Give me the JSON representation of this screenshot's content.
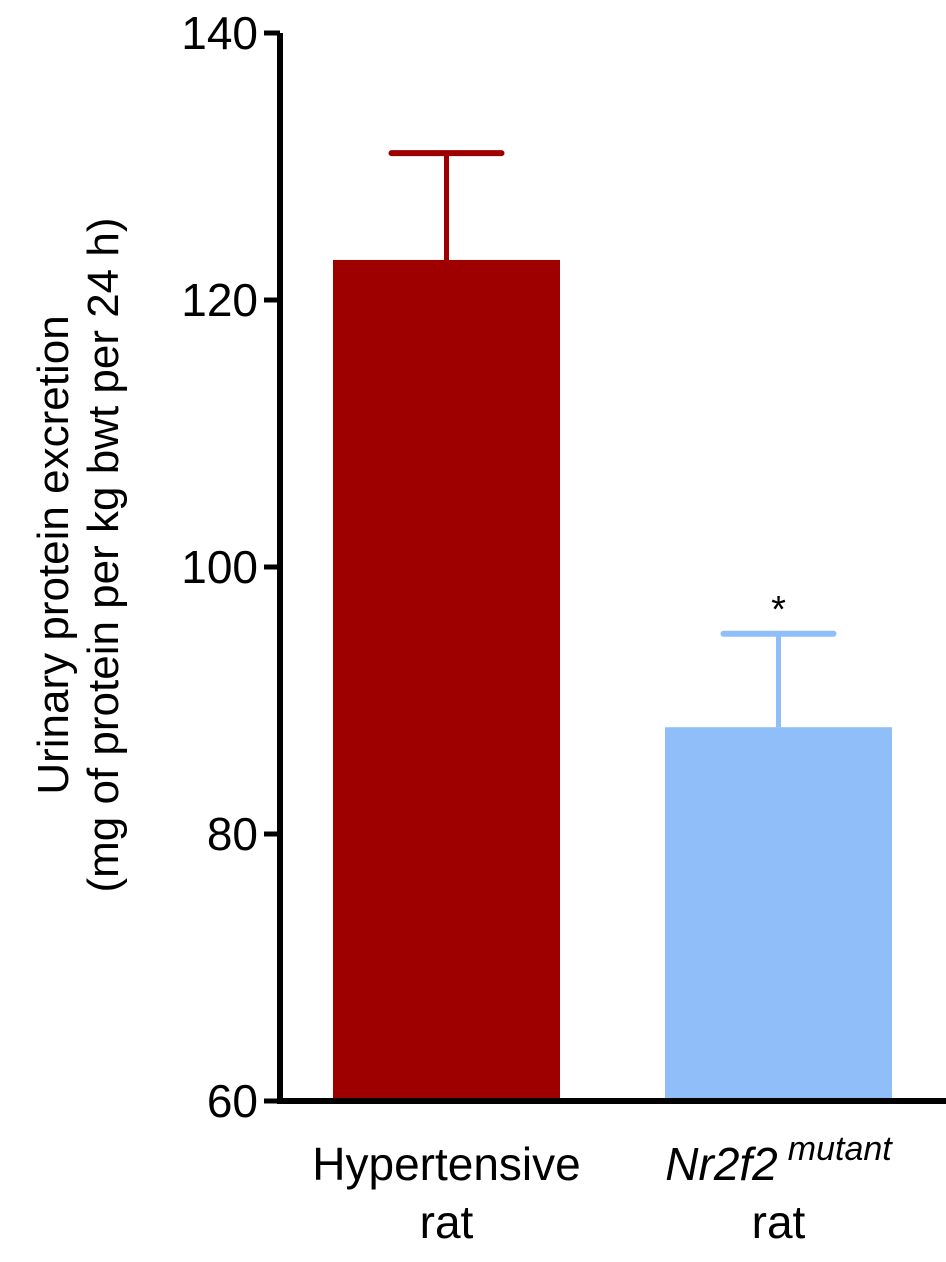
{
  "chart_data": {
    "type": "bar",
    "categories": [
      {
        "line1": "Hypertensive",
        "line1_sup": "",
        "line2": "rat"
      },
      {
        "line1": "Nr2f2",
        "line1_sup": "mutant",
        "line2": "rat"
      }
    ],
    "values": [
      123,
      88
    ],
    "errors": [
      8,
      7
    ],
    "annotations": [
      "",
      "*"
    ],
    "colors": [
      "#9E0000",
      "#90BEF8"
    ],
    "ylabel_line1": "Urinary protein excretion",
    "ylabel_line2": "(mg of protein per kg bwt per 24 h)",
    "ylim": [
      60,
      140
    ],
    "yticks": [
      60,
      80,
      100,
      120,
      140
    ],
    "grid": false
  }
}
